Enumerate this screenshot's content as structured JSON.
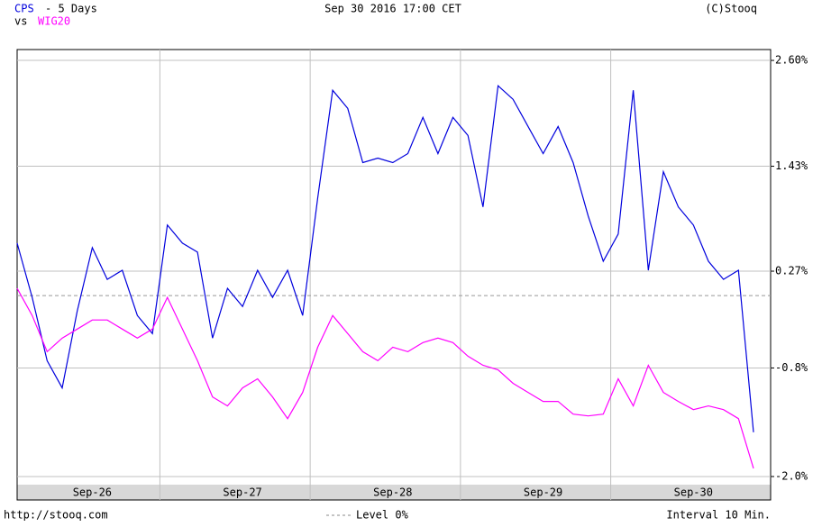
{
  "chart_data": {
    "type": "line",
    "title": "Sep 30 2016 17:00 CET",
    "period": "- 5 Days",
    "vs": "vs",
    "copyright": "(C)Stooq",
    "source": "http://stooq.com",
    "level": 0,
    "level_label": "Level 0%",
    "interval": "Interval 10 Min.",
    "categories": [
      null,
      null,
      null,
      null,
      null,
      "Sep-26",
      null,
      null,
      null,
      null,
      null,
      null,
      null,
      null,
      null,
      "Sep-27",
      null,
      null,
      null,
      null,
      null,
      null,
      null,
      null,
      null,
      "Sep-28",
      null,
      null,
      null,
      null,
      null,
      null,
      null,
      null,
      null,
      "Sep-29",
      null,
      null,
      null,
      null,
      null,
      null,
      null,
      null,
      null,
      "Sep-30",
      null,
      null,
      null,
      null
    ],
    "series": [
      {
        "name": "CPS",
        "color": "#0000dd",
        "values": [
          0.58,
          -0.02,
          -0.72,
          -1.02,
          -0.17,
          0.53,
          0.18,
          0.28,
          -0.22,
          -0.42,
          0.78,
          0.58,
          0.48,
          -0.47,
          0.08,
          -0.12,
          0.28,
          -0.02,
          0.28,
          -0.22,
          1.08,
          2.27,
          2.07,
          1.47,
          1.52,
          1.47,
          1.57,
          1.97,
          1.57,
          1.97,
          1.77,
          0.98,
          2.32,
          2.17,
          1.87,
          1.57,
          1.87,
          1.47,
          0.88,
          0.38,
          0.68,
          2.27,
          0.28,
          1.37,
          0.98,
          0.78,
          0.38,
          0.18,
          0.28,
          -1.51
        ]
      },
      {
        "name": "WIG20",
        "color": "#ff00ff",
        "values": [
          0.08,
          -0.22,
          -0.62,
          -0.47,
          -0.37,
          -0.27,
          -0.27,
          -0.37,
          -0.47,
          -0.37,
          -0.02,
          -0.37,
          -0.72,
          -1.12,
          -1.22,
          -1.02,
          -0.92,
          -1.12,
          -1.36,
          -1.07,
          -0.57,
          -0.22,
          -0.42,
          -0.62,
          -0.72,
          -0.57,
          -0.62,
          -0.52,
          -0.47,
          -0.52,
          -0.67,
          -0.77,
          -0.82,
          -0.97,
          -1.07,
          -1.17,
          -1.17,
          -1.31,
          -1.33,
          -1.31,
          -0.92,
          -1.22,
          -0.77,
          -1.07,
          -1.17,
          -1.26,
          -1.22,
          -1.26,
          -1.36,
          -1.91
        ]
      }
    ],
    "ylim": [
      -2.09,
      2.72
    ],
    "yticks": [
      {
        "value": 2.6,
        "label": "2.60%"
      },
      {
        "value": 1.43,
        "label": "1.43%"
      },
      {
        "value": 0.27,
        "label": "0.27%"
      },
      {
        "value": -0.8,
        "label": "-0.8%"
      },
      {
        "value": -2.0,
        "label": "-2.0%"
      }
    ],
    "grid": true
  }
}
